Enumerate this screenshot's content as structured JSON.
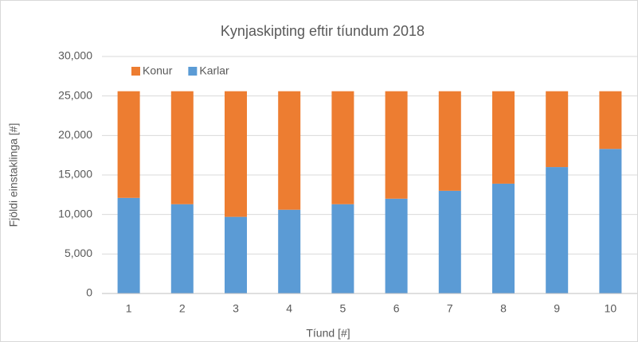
{
  "chart_data": {
    "type": "stacked_bar",
    "title": "Kynjaskipting eftir tíundum 2018",
    "x_label": "Tíund [#]",
    "y_label": "Fjöldi einstaklinga [#]",
    "categories": [
      "1",
      "2",
      "3",
      "4",
      "5",
      "6",
      "7",
      "8",
      "9",
      "10"
    ],
    "series": [
      {
        "name": "Karlar",
        "color": "#5b9bd5",
        "values": [
          12100,
          11300,
          9700,
          10600,
          11300,
          12000,
          13000,
          13900,
          16000,
          18300
        ]
      },
      {
        "name": "Konur",
        "color": "#ed7d31",
        "values": [
          13500,
          14300,
          15900,
          15000,
          14300,
          13600,
          12600,
          11700,
          9600,
          7300
        ]
      }
    ],
    "ylim": [
      0,
      30000
    ],
    "yticks": [
      0,
      {
        "value": 5000,
        "label": "5,000"
      },
      {
        "value": 10000,
        "label": "10,000"
      },
      {
        "value": 15000,
        "label": "15,000"
      },
      {
        "value": 20000,
        "label": "20,000"
      },
      {
        "value": 25000,
        "label": "25,000"
      },
      {
        "value": 30000,
        "label": "30,000"
      }
    ],
    "grid": true,
    "legend": "top-left"
  }
}
